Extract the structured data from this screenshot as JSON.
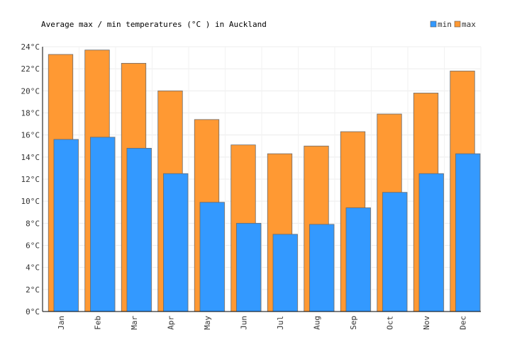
{
  "chart_data": {
    "type": "bar",
    "title": "Average max / min temperatures (°C ) in Auckland",
    "categories": [
      "Jan",
      "Feb",
      "Mar",
      "Apr",
      "May",
      "Jun",
      "Jul",
      "Aug",
      "Sep",
      "Oct",
      "Nov",
      "Dec"
    ],
    "series": [
      {
        "name": "max",
        "color": "#ff9933",
        "values": [
          23.3,
          23.7,
          22.5,
          20.0,
          17.4,
          15.1,
          14.3,
          15.0,
          16.3,
          17.9,
          19.8,
          21.8
        ]
      },
      {
        "name": "min",
        "color": "#3399ff",
        "values": [
          15.6,
          15.8,
          14.8,
          12.5,
          9.9,
          8.0,
          7.0,
          7.9,
          9.4,
          10.8,
          12.5,
          14.3
        ]
      }
    ],
    "ylim": [
      0,
      24
    ],
    "yticks": [
      0,
      2,
      4,
      6,
      8,
      10,
      12,
      14,
      16,
      18,
      20,
      22,
      24
    ],
    "ytick_suffix": "°C",
    "xlabel": "",
    "ylabel": "",
    "grid": true,
    "legend": {
      "position": "top-right",
      "items": [
        "min",
        "max"
      ]
    }
  }
}
